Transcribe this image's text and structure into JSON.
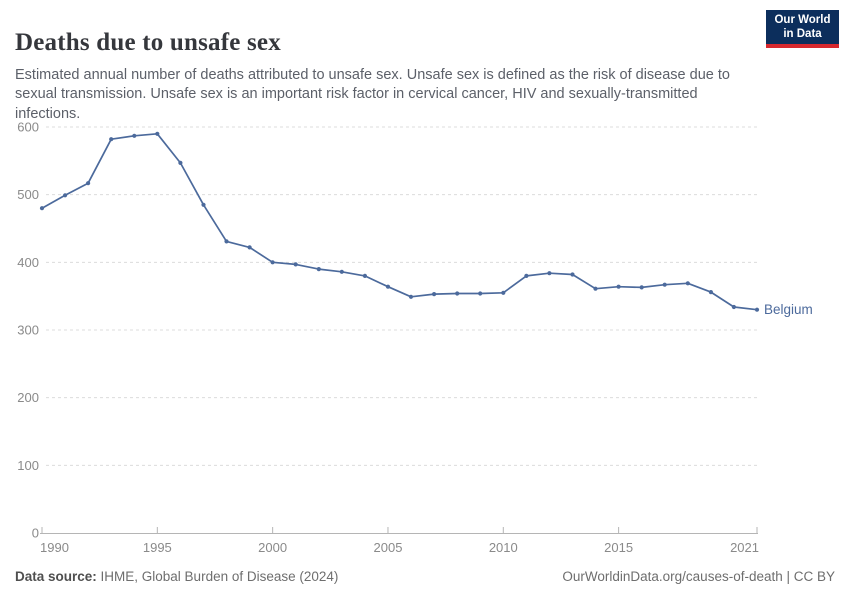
{
  "header": {
    "title": "Deaths due to unsafe sex",
    "subtitle": "Estimated annual number of deaths attributed to unsafe sex. Unsafe sex is defined as the risk of disease due to sexual transmission. Unsafe sex is an important risk factor in cervical cancer, HIV and sexually-transmitted infections."
  },
  "logo": {
    "line1": "Our World",
    "line2": "in Data",
    "bg_color": "#0C2E5C",
    "bar_color": "#D7282E"
  },
  "chart_data": {
    "type": "line",
    "title": "Deaths due to unsafe sex",
    "x": [
      1990,
      1991,
      1992,
      1993,
      1994,
      1995,
      1996,
      1997,
      1998,
      1999,
      2000,
      2001,
      2002,
      2003,
      2004,
      2005,
      2006,
      2007,
      2008,
      2009,
      2010,
      2011,
      2012,
      2013,
      2014,
      2015,
      2016,
      2017,
      2018,
      2019,
      2020,
      2021
    ],
    "series": [
      {
        "name": "Belgium",
        "color": "#4C6A9C",
        "values": [
          480,
          499,
          517,
          582,
          587,
          590,
          547,
          485,
          431,
          422,
          400,
          397,
          390,
          386,
          380,
          364,
          349,
          353,
          354,
          354,
          355,
          380,
          384,
          382,
          361,
          364,
          363,
          367,
          369,
          356,
          334,
          330
        ]
      }
    ],
    "xlabel": "",
    "ylabel": "",
    "ylim": [
      0,
      600
    ],
    "yticks": [
      0,
      100,
      200,
      300,
      400,
      500,
      600
    ],
    "xticks": [
      1990,
      1995,
      2000,
      2005,
      2010,
      2015,
      2021
    ],
    "grid": "horizontal-dashed",
    "legend_position": "end-of-line",
    "entity_label": "Belgium"
  },
  "footer": {
    "datasource_label": "Data source:",
    "datasource_value": " IHME, Global Burden of Disease (2024)",
    "credit": "OurWorldinData.org/causes-of-death | CC BY"
  }
}
